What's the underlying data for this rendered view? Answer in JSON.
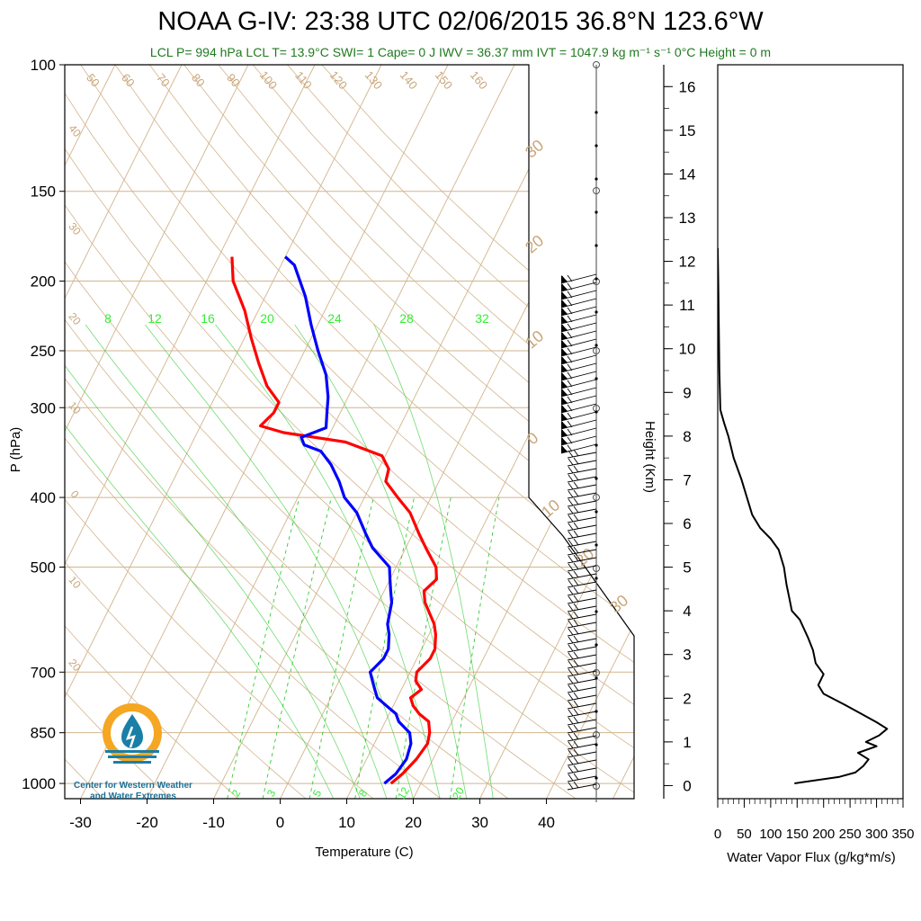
{
  "title": "NOAA G-IV: 23:38 UTC 02/06/2015  36.8°N 123.6°W",
  "subtitle": "LCL P= 994 hPa  LCL T= 13.9°C  SWI= 1  Cape= 0 J  IWV = 36.37 mm  IVT = 1047.9 kg m⁻¹ s⁻¹  0°C Height = 0 m",
  "logo_text": [
    "Center for Western Weather",
    "and Water Extremes"
  ],
  "colors": {
    "temperature": "#ff0000",
    "dewpoint": "#0000ff",
    "isotherm": "#d2b48c",
    "dry_adiabat": "#d2b48c",
    "mixing_ratio": "#33cc33",
    "label_tan": "#c9a67a",
    "label_green": "#33ee33",
    "logo_orange": "#f5a623",
    "logo_teal": "#1a7fa6"
  },
  "chart_data": [
    {
      "type": "line",
      "subtype": "skew-T log-P sounding",
      "xlabel": "Temperature (C)",
      "ylabel": "P (hPa)",
      "xlim": [
        -35,
        52
      ],
      "ylim": [
        1050,
        100
      ],
      "y_scale": "log",
      "x_ticks": [
        "-30",
        "-20",
        "-10",
        "0",
        "10",
        "20",
        "30",
        "40"
      ],
      "y_ticks": [
        "100",
        "150",
        "200",
        "250",
        "300",
        "400",
        "500",
        "700",
        "850",
        "1000"
      ],
      "isotherm_labels": [
        "50",
        "60",
        "70",
        "80",
        "90",
        "100",
        "110",
        "120",
        "130",
        "140",
        "150",
        "160",
        "40",
        "30",
        "20",
        "10",
        "0",
        "10",
        "20"
      ],
      "dry_adiabat_labels": [
        "30",
        "20",
        "10",
        "0",
        "10",
        "20",
        "30"
      ],
      "mixing_ratio_top_labels": [
        "8",
        "12",
        "16",
        "20",
        "24",
        "28",
        "32"
      ],
      "mixing_ratio_bottom_labels": [
        "2",
        "3",
        "5",
        "8",
        "12",
        "20"
      ],
      "series": [
        {
          "name": "Temperature",
          "points": [
            [
              1000,
              15.5
            ],
            [
              970,
              16.5
            ],
            [
              925,
              17.5
            ],
            [
              880,
              18
            ],
            [
              850,
              17.5
            ],
            [
              820,
              16.5
            ],
            [
              800,
              14.5
            ],
            [
              780,
              13
            ],
            [
              760,
              12
            ],
            [
              740,
              13
            ],
            [
              720,
              11.5
            ],
            [
              700,
              11
            ],
            [
              670,
              12
            ],
            [
              650,
              12
            ],
            [
              620,
              11
            ],
            [
              600,
              10
            ],
            [
              560,
              7
            ],
            [
              540,
              6
            ],
            [
              520,
              7
            ],
            [
              500,
              6
            ],
            [
              470,
              3
            ],
            [
              450,
              1
            ],
            [
              420,
              -2
            ],
            [
              400,
              -5
            ],
            [
              380,
              -8
            ],
            [
              365,
              -8.5
            ],
            [
              350,
              -10.5
            ],
            [
              335,
              -17
            ],
            [
              325,
              -27
            ],
            [
              318,
              -31
            ],
            [
              305,
              -30
            ],
            [
              295,
              -30
            ],
            [
              280,
              -33
            ],
            [
              260,
              -36
            ],
            [
              240,
              -39
            ],
            [
              220,
              -42
            ],
            [
              200,
              -46
            ],
            [
              185,
              -48
            ]
          ]
        },
        {
          "name": "Dewpoint",
          "points": [
            [
              1000,
              14.5
            ],
            [
              970,
              15.5
            ],
            [
              925,
              16
            ],
            [
              880,
              15.5
            ],
            [
              850,
              14.5
            ],
            [
              820,
              12
            ],
            [
              800,
              11
            ],
            [
              780,
              9
            ],
            [
              760,
              7
            ],
            [
              740,
              6
            ],
            [
              720,
              5
            ],
            [
              700,
              4
            ],
            [
              670,
              5
            ],
            [
              650,
              5
            ],
            [
              620,
              4
            ],
            [
              600,
              3
            ],
            [
              560,
              2
            ],
            [
              540,
              1
            ],
            [
              520,
              0
            ],
            [
              500,
              -1
            ],
            [
              470,
              -5
            ],
            [
              450,
              -7
            ],
            [
              420,
              -10
            ],
            [
              400,
              -13
            ],
            [
              380,
              -15
            ],
            [
              360,
              -17.5
            ],
            [
              345,
              -20
            ],
            [
              338,
              -23
            ],
            [
              330,
              -24
            ],
            [
              320,
              -21
            ],
            [
              305,
              -22
            ],
            [
              290,
              -23
            ],
            [
              270,
              -25
            ],
            [
              250,
              -28
            ],
            [
              230,
              -31
            ],
            [
              210,
              -34
            ],
            [
              190,
              -38
            ],
            [
              185,
              -40
            ]
          ]
        },
        {
          "name": "Water Vapor Flux",
          "xlabel": "Water Vapor Flux (g/kg*m/s)",
          "ylabel": "Height (Km)",
          "xlim": [
            0,
            350
          ],
          "ylim": [
            -0.3,
            16.5
          ],
          "x_ticks": [
            "0",
            "50",
            "100",
            "150",
            "200",
            "250",
            "300",
            "350"
          ],
          "y_ticks": [
            "0",
            "1",
            "2",
            "3",
            "4",
            "5",
            "6",
            "7",
            "8",
            "9",
            "10",
            "11",
            "12",
            "13",
            "14",
            "15",
            "16"
          ],
          "points": [
            [
              145,
              0.05
            ],
            [
              230,
              0.2
            ],
            [
              260,
              0.3
            ],
            [
              275,
              0.45
            ],
            [
              285,
              0.6
            ],
            [
              265,
              0.75
            ],
            [
              300,
              0.9
            ],
            [
              280,
              1.0
            ],
            [
              305,
              1.15
            ],
            [
              320,
              1.3
            ],
            [
              300,
              1.45
            ],
            [
              270,
              1.65
            ],
            [
              240,
              1.85
            ],
            [
              200,
              2.1
            ],
            [
              190,
              2.3
            ],
            [
              200,
              2.55
            ],
            [
              185,
              2.8
            ],
            [
              180,
              3.1
            ],
            [
              170,
              3.4
            ],
            [
              155,
              3.8
            ],
            [
              140,
              4.0
            ],
            [
              135,
              4.3
            ],
            [
              130,
              4.6
            ],
            [
              125,
              5.0
            ],
            [
              115,
              5.4
            ],
            [
              100,
              5.65
            ],
            [
              80,
              5.9
            ],
            [
              65,
              6.2
            ],
            [
              55,
              6.6
            ],
            [
              45,
              7.0
            ],
            [
              30,
              7.5
            ],
            [
              20,
              8.0
            ],
            [
              12,
              8.3
            ],
            [
              5,
              8.6
            ],
            [
              3,
              9.5
            ],
            [
              2,
              10.5
            ],
            [
              1,
              11.5
            ],
            [
              0,
              12.3
            ]
          ]
        }
      ]
    }
  ]
}
